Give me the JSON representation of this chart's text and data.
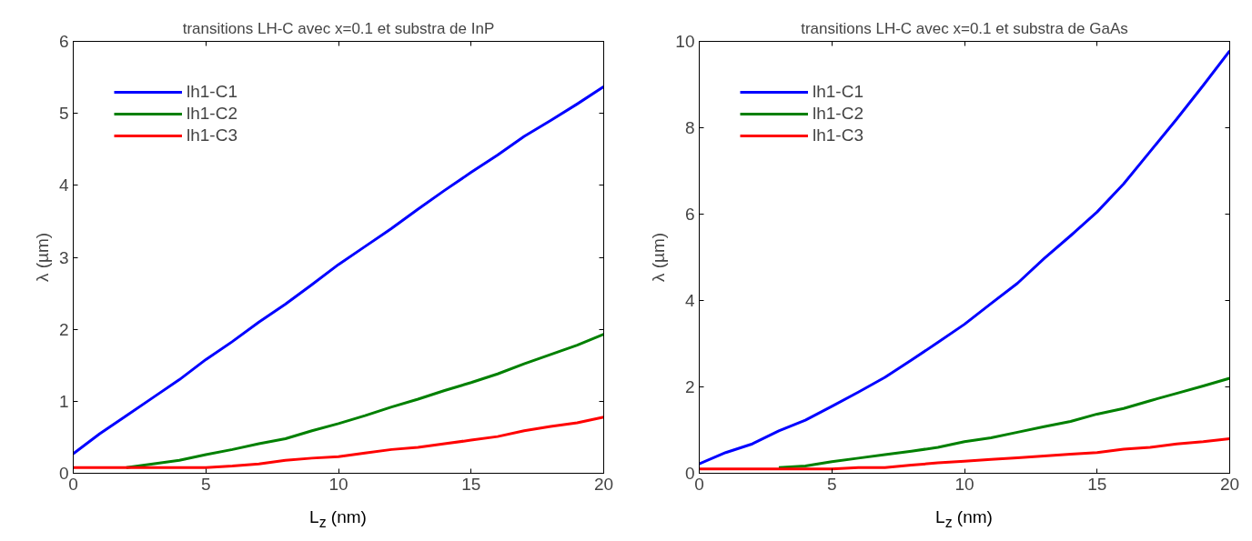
{
  "chart_data": [
    {
      "type": "line",
      "title": "transitions LH-C avec x=0.1 et substra de InP",
      "xlabel": "L$_{z}$ (nm)",
      "ylabel": "λ (µm)",
      "x": [
        0,
        1,
        2,
        3,
        4,
        5,
        6,
        7,
        8,
        9,
        10,
        11,
        12,
        13,
        14,
        15,
        16,
        17,
        18,
        19,
        20
      ],
      "xlim": [
        0,
        20
      ],
      "xticks": [
        0,
        5,
        10,
        15,
        20
      ],
      "ylim": [
        0,
        6
      ],
      "yticks": [
        0,
        1,
        2,
        3,
        4,
        5,
        6
      ],
      "grid": false,
      "legend": "top left",
      "series": [
        {
          "name": "lh1-C1",
          "color": "#0000ff",
          "values": [
            0.27,
            0.55,
            0.8,
            1.05,
            1.3,
            1.58,
            1.83,
            2.1,
            2.35,
            2.62,
            2.9,
            3.15,
            3.4,
            3.67,
            3.93,
            4.18,
            4.42,
            4.68,
            4.9,
            5.13,
            5.37
          ]
        },
        {
          "name": "lh1-C2",
          "color": "#008000",
          "values": [
            null,
            null,
            0.08,
            0.13,
            0.18,
            0.26,
            0.33,
            0.41,
            0.48,
            0.59,
            0.69,
            0.8,
            0.92,
            1.03,
            1.15,
            1.26,
            1.38,
            1.52,
            1.65,
            1.78,
            1.93
          ]
        },
        {
          "name": "lh1-C3",
          "color": "#ff0000",
          "values": [
            0.08,
            0.08,
            0.08,
            0.08,
            0.08,
            0.08,
            0.1,
            0.13,
            0.18,
            0.21,
            0.23,
            0.28,
            0.33,
            0.36,
            0.41,
            0.46,
            0.51,
            0.59,
            0.65,
            0.7,
            0.78
          ]
        }
      ]
    },
    {
      "type": "line",
      "title": "transitions LH-C avec x=0.1 et substra de GaAs",
      "xlabel": "L$_{z}$ (nm)",
      "ylabel": "λ (µm)",
      "x": [
        0,
        1,
        2,
        3,
        4,
        5,
        6,
        7,
        8,
        9,
        10,
        11,
        12,
        13,
        14,
        15,
        16,
        17,
        18,
        19,
        20
      ],
      "xlim": [
        0,
        20
      ],
      "xticks": [
        0,
        5,
        10,
        15,
        20
      ],
      "ylim": [
        0,
        10
      ],
      "yticks": [
        0,
        2,
        4,
        6,
        8,
        10
      ],
      "grid": false,
      "legend": "top left",
      "series": [
        {
          "name": "lh1-C1",
          "color": "#0000ff",
          "values": [
            0.22,
            0.48,
            0.68,
            0.98,
            1.23,
            1.55,
            1.88,
            2.22,
            2.62,
            3.03,
            3.45,
            3.93,
            4.4,
            4.97,
            5.5,
            6.05,
            6.7,
            7.45,
            8.2,
            8.98,
            9.78
          ]
        },
        {
          "name": "lh1-C2",
          "color": "#008000",
          "values": [
            null,
            null,
            null,
            0.13,
            0.17,
            0.27,
            0.35,
            0.43,
            0.51,
            0.6,
            0.73,
            0.82,
            0.95,
            1.08,
            1.2,
            1.37,
            1.5,
            1.68,
            1.85,
            2.02,
            2.2
          ]
        },
        {
          "name": "lh1-C3",
          "color": "#ff0000",
          "values": [
            0.1,
            0.1,
            0.1,
            0.1,
            0.1,
            0.1,
            0.13,
            0.13,
            0.19,
            0.24,
            0.28,
            0.32,
            0.36,
            0.4,
            0.44,
            0.48,
            0.56,
            0.6,
            0.68,
            0.73,
            0.8
          ]
        }
      ]
    }
  ]
}
